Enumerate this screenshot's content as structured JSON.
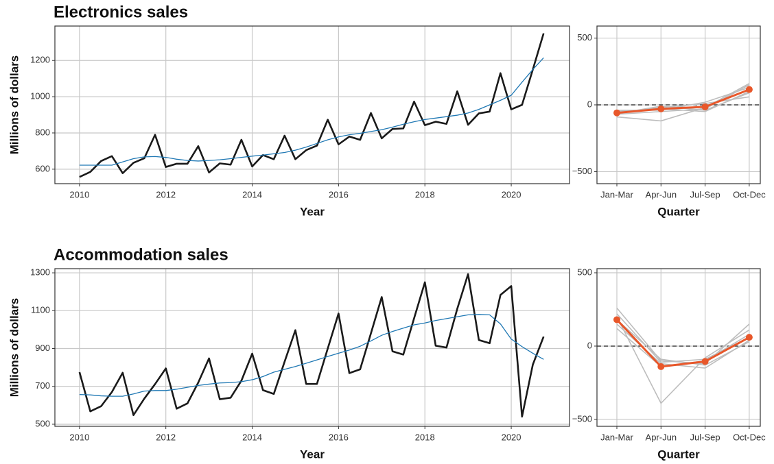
{
  "chart_data": [
    {
      "type": "line",
      "title": "Electronics sales",
      "x_label": "Year",
      "y_label": "Millions of dollars",
      "x": [
        2010,
        2010.25,
        2010.5,
        2010.75,
        2011,
        2011.25,
        2011.5,
        2011.75,
        2012,
        2012.25,
        2012.5,
        2012.75,
        2013,
        2013.25,
        2013.5,
        2013.75,
        2014,
        2014.25,
        2014.5,
        2014.75,
        2015,
        2015.25,
        2015.5,
        2015.75,
        2016,
        2016.25,
        2016.5,
        2016.75,
        2017,
        2017.25,
        2017.5,
        2017.75,
        2018,
        2018.25,
        2018.5,
        2018.75,
        2019,
        2019.25,
        2019.5,
        2019.75,
        2020,
        2020.25,
        2020.5,
        2020.75
      ],
      "series": [
        {
          "color": "#1a1a1a",
          "values": [
            557,
            585,
            645,
            672,
            578,
            635,
            660,
            790,
            612,
            630,
            630,
            727,
            582,
            632,
            625,
            762,
            615,
            678,
            655,
            785,
            655,
            705,
            730,
            873,
            737,
            780,
            762,
            910,
            770,
            822,
            825,
            973,
            843,
            862,
            850,
            1030,
            845,
            908,
            918,
            1130,
            930,
            955,
            1150,
            1350
          ]
        },
        {
          "color": "#1f78b4",
          "values": [
            622,
            622,
            622,
            622,
            640,
            658,
            668,
            670,
            665,
            655,
            648,
            645,
            648,
            652,
            658,
            665,
            672,
            678,
            685,
            692,
            705,
            722,
            742,
            762,
            778,
            790,
            798,
            808,
            818,
            832,
            848,
            862,
            874,
            882,
            890,
            898,
            910,
            930,
            955,
            980,
            1008,
            1080,
            1150,
            1215
          ]
        }
      ],
      "xlim": [
        2009.43,
        2021.35
      ],
      "xticks": [
        2010,
        2012,
        2014,
        2016,
        2018,
        2020
      ],
      "ylim": [
        520,
        1390
      ],
      "yticks": [
        600,
        800,
        1000,
        1200
      ],
      "grid": true
    },
    {
      "type": "seasonal",
      "x_label": "Quarter",
      "categories": [
        "Jan-Mar",
        "Apr-Jun",
        "Jul-Sep",
        "Oct-Dec"
      ],
      "series": [
        {
          "color": "#bdbdbd",
          "values": [
            -70,
            -50,
            -30,
            150
          ]
        },
        {
          "color": "#bdbdbd",
          "values": [
            -90,
            -120,
            -20,
            160
          ]
        },
        {
          "color": "#bdbdbd",
          "values": [
            -50,
            -30,
            -50,
            100
          ]
        },
        {
          "color": "#bdbdbd",
          "values": [
            -60,
            -20,
            10,
            60
          ]
        },
        {
          "color": "#bdbdbd",
          "values": [
            -40,
            -40,
            20,
            130
          ]
        },
        {
          "color": "#bdbdbd",
          "values": [
            -65,
            -10,
            -40,
            90
          ]
        },
        {
          "color": "#e8572a",
          "values": [
            -60,
            -30,
            -15,
            115
          ]
        }
      ],
      "hline": 0,
      "ylim": [
        -590,
        590
      ],
      "yticks": [
        {
          "value": -500,
          "label": "−500"
        },
        0,
        500
      ],
      "grid": true
    },
    {
      "type": "line",
      "title": "Accommodation sales",
      "x_label": "Year",
      "y_label": "Millions of dollars",
      "x": [
        2010,
        2010.25,
        2010.5,
        2010.75,
        2011,
        2011.25,
        2011.5,
        2011.75,
        2012,
        2012.25,
        2012.5,
        2012.75,
        2013,
        2013.25,
        2013.5,
        2013.75,
        2014,
        2014.25,
        2014.5,
        2014.75,
        2015,
        2015.25,
        2015.5,
        2015.75,
        2016,
        2016.25,
        2016.5,
        2016.75,
        2017,
        2017.25,
        2017.5,
        2017.75,
        2018,
        2018.25,
        2018.5,
        2018.75,
        2019,
        2019.25,
        2019.5,
        2019.75,
        2020,
        2020.25,
        2020.5,
        2020.75
      ],
      "series": [
        {
          "color": "#1a1a1a",
          "values": [
            775,
            568,
            595,
            670,
            772,
            548,
            635,
            712,
            795,
            582,
            610,
            720,
            848,
            632,
            640,
            730,
            873,
            680,
            660,
            830,
            997,
            713,
            713,
            900,
            1085,
            770,
            790,
            980,
            1172,
            885,
            868,
            1060,
            1250,
            915,
            905,
            1110,
            1293,
            945,
            928,
            1183,
            1230,
            540,
            815,
            963
          ]
        },
        {
          "color": "#1f78b4",
          "values": [
            657,
            655,
            650,
            648,
            648,
            660,
            675,
            678,
            678,
            685,
            695,
            705,
            712,
            718,
            720,
            725,
            735,
            752,
            775,
            790,
            805,
            822,
            840,
            858,
            875,
            892,
            912,
            940,
            970,
            990,
            1008,
            1025,
            1035,
            1048,
            1058,
            1068,
            1078,
            1080,
            1078,
            1030,
            950,
            910,
            875,
            843
          ]
        }
      ],
      "xlim": [
        2009.43,
        2021.35
      ],
      "xticks": [
        2010,
        2012,
        2014,
        2016,
        2018,
        2020
      ],
      "ylim": [
        489,
        1322
      ],
      "yticks": [
        500,
        700,
        900,
        1100,
        1300
      ],
      "grid": true
    },
    {
      "type": "seasonal",
      "x_label": "Quarter",
      "categories": [
        "Jan-Mar",
        "Apr-Jun",
        "Jul-Sep",
        "Oct-Dec"
      ],
      "series": [
        {
          "color": "#bdbdbd",
          "values": [
            260,
            -100,
            -120,
            150
          ]
        },
        {
          "color": "#bdbdbd",
          "values": [
            200,
            -390,
            -80,
            110
          ]
        },
        {
          "color": "#bdbdbd",
          "values": [
            150,
            -120,
            -150,
            40
          ]
        },
        {
          "color": "#bdbdbd",
          "values": [
            120,
            -140,
            -100,
            80
          ]
        },
        {
          "color": "#bdbdbd",
          "values": [
            180,
            -90,
            -130,
            30
          ]
        },
        {
          "color": "#bdbdbd",
          "values": [
            220,
            -110,
            -90,
            60
          ]
        },
        {
          "color": "#e8572a",
          "values": [
            180,
            -140,
            -105,
            60
          ]
        }
      ],
      "hline": 0,
      "ylim": [
        -547,
        528
      ],
      "yticks": [
        {
          "value": -500,
          "label": "−500"
        },
        0,
        500
      ],
      "grid": true
    }
  ]
}
